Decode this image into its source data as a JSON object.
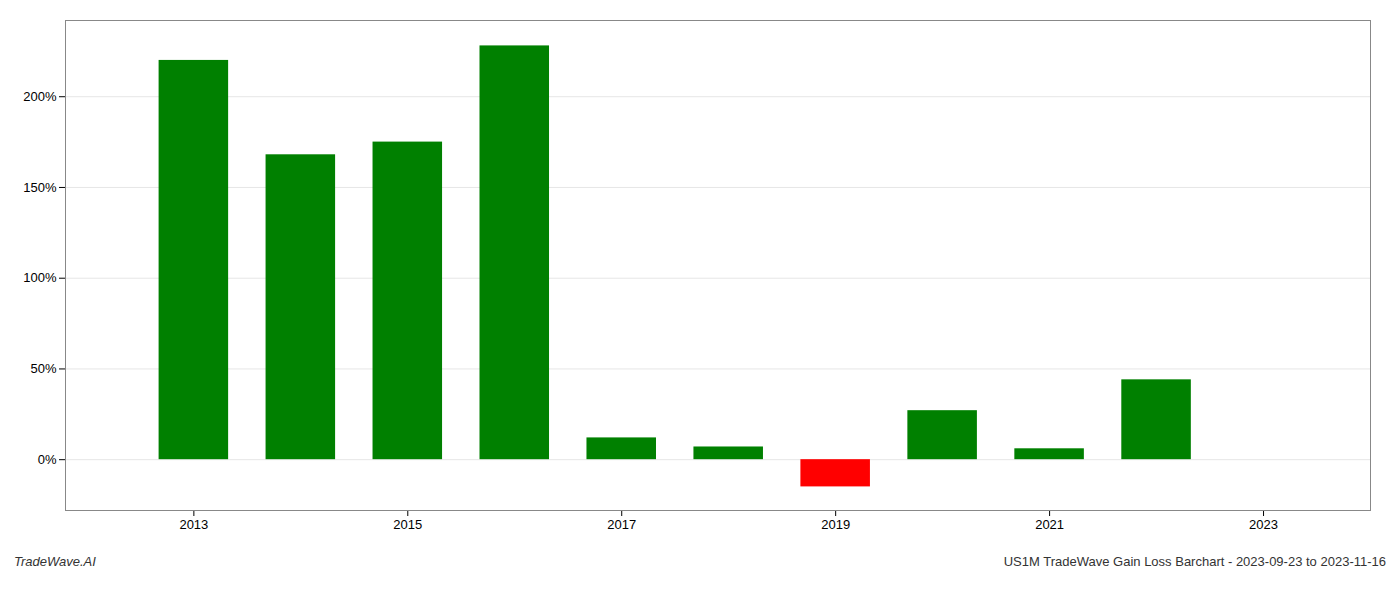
{
  "chart_data": {
    "type": "bar",
    "x": [
      2013,
      2014,
      2015,
      2016,
      2017,
      2018,
      2019,
      2020,
      2021,
      2022
    ],
    "values": [
      2.2,
      1.68,
      1.75,
      2.28,
      0.12,
      0.07,
      -0.15,
      0.27,
      0.06,
      0.44
    ],
    "colors": [
      "#008000",
      "#008000",
      "#008000",
      "#008000",
      "#008000",
      "#008000",
      "#ff0000",
      "#008000",
      "#008000",
      "#008000"
    ],
    "xlim": [
      2011.8,
      2024.0
    ],
    "xticks": [
      2013,
      2015,
      2017,
      2019,
      2021,
      2023
    ],
    "ylim": [
      -0.28,
      2.42
    ],
    "yticks": [
      {
        "value": 0,
        "label": "0%"
      },
      {
        "value": 0.5,
        "label": "50%"
      },
      {
        "value": 1.0,
        "label": "100%"
      },
      {
        "value": 1.5,
        "label": "150%"
      },
      {
        "value": 2.0,
        "label": "200%"
      }
    ],
    "grid": true,
    "annotations": [
      "TradeWave.AI",
      "US1M TradeWave Gain Loss Barchart - 2023-09-23 to 2023-11-16"
    ]
  }
}
